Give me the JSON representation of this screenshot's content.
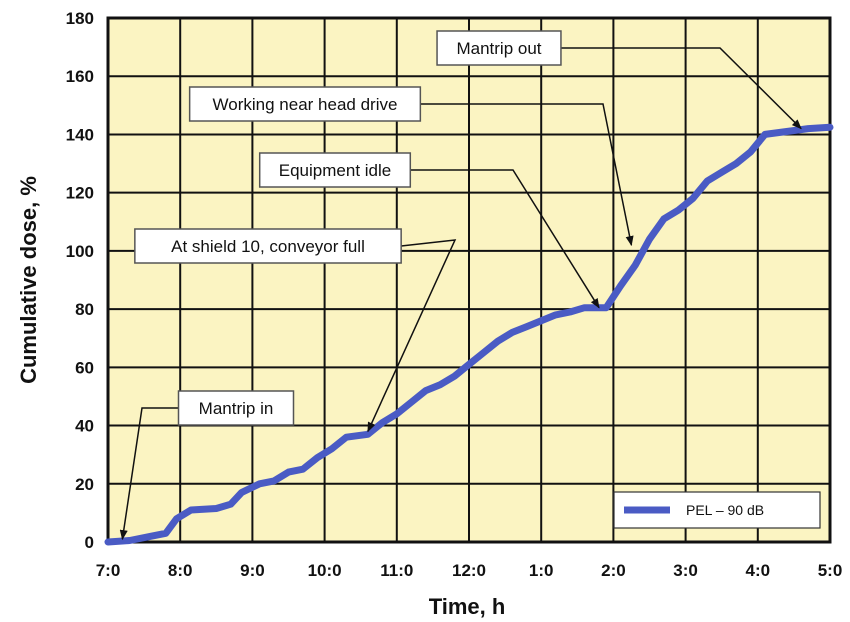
{
  "chart_data": {
    "type": "line",
    "title": "",
    "xlabel": "Time, h",
    "ylabel": "Cumulative dose, %",
    "x_tick_labels": [
      "7:0",
      "8:0",
      "9:0",
      "10:0",
      "11:0",
      "12:0",
      "1:0",
      "2:0",
      "3:0",
      "4:0",
      "5:0"
    ],
    "y_ticks": [
      0,
      20,
      40,
      60,
      80,
      100,
      120,
      140,
      160,
      180
    ],
    "xlim": [
      0,
      10
    ],
    "ylim": [
      0,
      180
    ],
    "x_unit_note": "hours elapsed after 7:0",
    "grid": true,
    "plot_background": "#fbf4c2",
    "legend_position": "bottom-right",
    "series": [
      {
        "name": "PEL – 90 dB",
        "color": "#4a5bc4",
        "points": [
          [
            0,
            0
          ],
          [
            0.3,
            0.5
          ],
          [
            0.6,
            2
          ],
          [
            0.8,
            3
          ],
          [
            0.95,
            8
          ],
          [
            1.15,
            11
          ],
          [
            1.5,
            11.5
          ],
          [
            1.7,
            13
          ],
          [
            1.85,
            17
          ],
          [
            2.1,
            20
          ],
          [
            2.3,
            21
          ],
          [
            2.5,
            24
          ],
          [
            2.7,
            25
          ],
          [
            2.9,
            29
          ],
          [
            3.1,
            32
          ],
          [
            3.3,
            36
          ],
          [
            3.6,
            37
          ],
          [
            3.8,
            41
          ],
          [
            4.0,
            44
          ],
          [
            4.2,
            48
          ],
          [
            4.4,
            52
          ],
          [
            4.6,
            54
          ],
          [
            4.8,
            57
          ],
          [
            5.0,
            61
          ],
          [
            5.2,
            65
          ],
          [
            5.4,
            69
          ],
          [
            5.6,
            72
          ],
          [
            5.8,
            74
          ],
          [
            6.0,
            76
          ],
          [
            6.2,
            78
          ],
          [
            6.4,
            79
          ],
          [
            6.6,
            80.5
          ],
          [
            6.9,
            80.5
          ],
          [
            7.1,
            88
          ],
          [
            7.3,
            95
          ],
          [
            7.5,
            104
          ],
          [
            7.7,
            111
          ],
          [
            7.9,
            114
          ],
          [
            8.1,
            118
          ],
          [
            8.3,
            124
          ],
          [
            8.5,
            127
          ],
          [
            8.7,
            130
          ],
          [
            8.9,
            134
          ],
          [
            9.1,
            140
          ],
          [
            9.4,
            141
          ],
          [
            9.7,
            142
          ],
          [
            10.0,
            142.5
          ]
        ]
      }
    ],
    "annotations": [
      {
        "text": "Mantrip out",
        "x": 9.6,
        "y": 142
      },
      {
        "text": "Working near head drive",
        "x": 7.25,
        "y": 102
      },
      {
        "text": "Equipment idle",
        "x": 6.8,
        "y": 80.5
      },
      {
        "text": "At shield 10, conveyor full",
        "x": 3.6,
        "y": 38
      },
      {
        "text": "Mantrip in",
        "x": 0.2,
        "y": 1
      }
    ]
  }
}
